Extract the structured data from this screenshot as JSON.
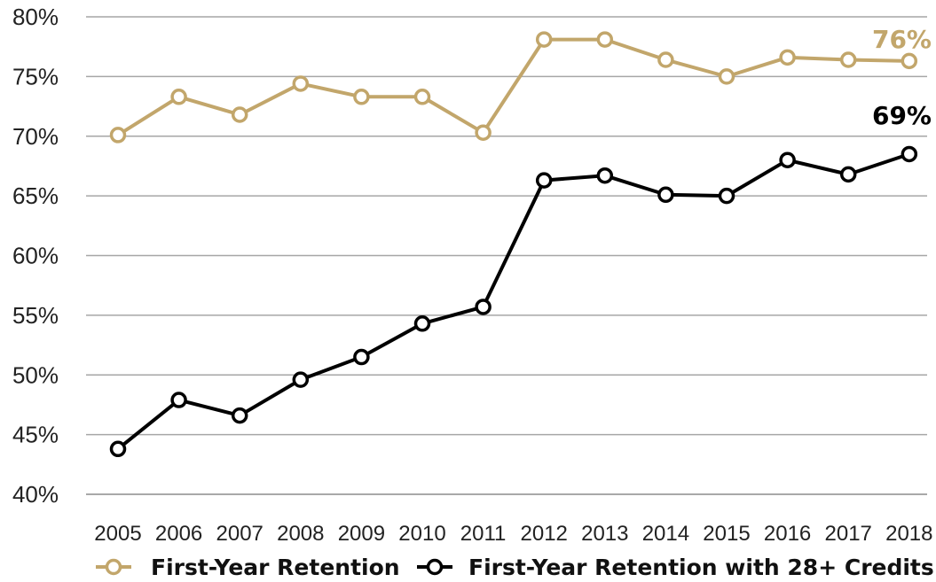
{
  "chart_data": {
    "type": "line",
    "title": "",
    "xlabel": "",
    "ylabel": "",
    "categories": [
      "2005",
      "2006",
      "2007",
      "2008",
      "2009",
      "2010",
      "2011",
      "2012",
      "2013",
      "2014",
      "2015",
      "2016",
      "2017",
      "2018"
    ],
    "ylim": [
      40,
      80
    ],
    "yticks": [
      "40%",
      "45%",
      "50%",
      "55%",
      "60%",
      "65%",
      "70%",
      "75%",
      "80%"
    ],
    "grid": true,
    "legend_position": "bottom",
    "series": [
      {
        "name": "First-Year Retention",
        "color": "#c2a66b",
        "values": [
          70.1,
          73.3,
          71.8,
          74.4,
          73.3,
          73.3,
          70.3,
          78.1,
          78.1,
          76.4,
          75.0,
          76.6,
          76.4,
          76.3
        ],
        "end_label": "76%"
      },
      {
        "name": "First-Year Retention with 28+ Credits",
        "color": "#000000",
        "values": [
          43.8,
          47.9,
          46.6,
          49.6,
          51.5,
          54.3,
          55.7,
          66.3,
          66.7,
          65.1,
          65.0,
          68.0,
          66.8,
          68.5
        ],
        "end_label": "69%"
      }
    ]
  }
}
